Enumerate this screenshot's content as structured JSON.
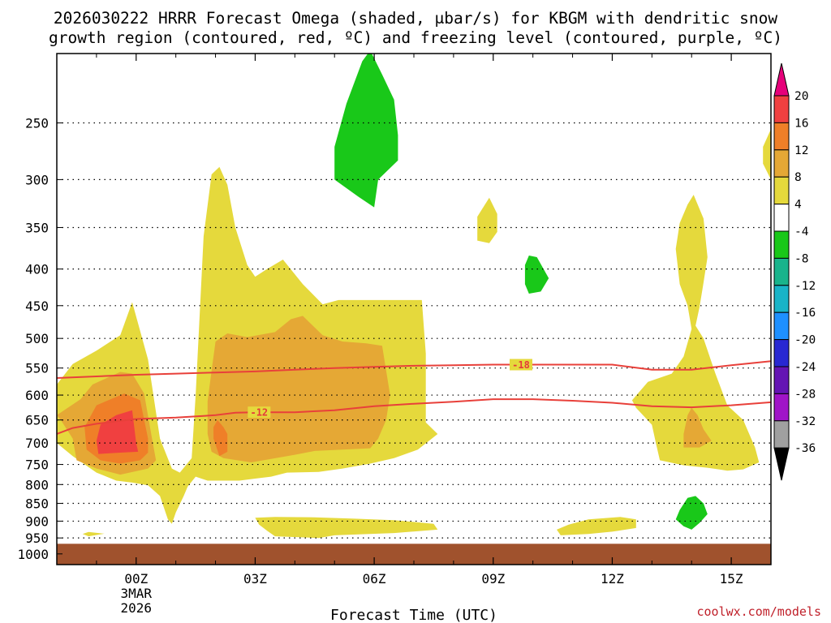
{
  "chart_data": {
    "type": "contour",
    "title_line1": "2026030222 HRRR Forecast Omega (shaded, μbar/s) for KBGM with dendritic snow",
    "title_line2": "growth region (contoured, red, ºC) and freezing level (contoured, purple, ºC)",
    "xlabel": "Forecast Time (UTC)",
    "x_hours": [
      -2,
      16
    ],
    "x_ticks": [
      {
        "hour": 0,
        "label": "00Z",
        "sub1": "3MAR",
        "sub2": "2026"
      },
      {
        "hour": 3,
        "label": "03Z",
        "sub1": "",
        "sub2": ""
      },
      {
        "hour": 6,
        "label": "06Z",
        "sub1": "",
        "sub2": ""
      },
      {
        "hour": 9,
        "label": "09Z",
        "sub1": "",
        "sub2": ""
      },
      {
        "hour": 12,
        "label": "12Z",
        "sub1": "",
        "sub2": ""
      },
      {
        "hour": 15,
        "label": "15Z",
        "sub1": "",
        "sub2": ""
      }
    ],
    "y_levels": [
      {
        "p": 250,
        "label": "250"
      },
      {
        "p": 300,
        "label": "300"
      },
      {
        "p": 350,
        "label": "350"
      },
      {
        "p": 400,
        "label": "400"
      },
      {
        "p": 450,
        "label": "450"
      },
      {
        "p": 500,
        "label": "500"
      },
      {
        "p": 550,
        "label": "550"
      },
      {
        "p": 600,
        "label": "600"
      },
      {
        "p": 650,
        "label": "650"
      },
      {
        "p": 700,
        "label": "700"
      },
      {
        "p": 750,
        "label": "750"
      },
      {
        "p": 800,
        "label": "800"
      },
      {
        "p": 850,
        "label": "850"
      },
      {
        "p": 900,
        "label": "900"
      },
      {
        "p": 950,
        "label": "950"
      },
      {
        "p": 1000,
        "label": "1000"
      }
    ],
    "y_range_mb": [
      200,
      1035
    ],
    "ground_level_mb": 968,
    "ground_color": "#a0522d",
    "colorbar": {
      "labels": [
        "20",
        "16",
        "12",
        "8",
        "4",
        "-4",
        "-8",
        "-12",
        "-16",
        "-20",
        "-24",
        "-28",
        "-32",
        "-36"
      ],
      "bins": [
        {
          "range": ">20",
          "color": "#e6007a"
        },
        {
          "range": "16-20",
          "color": "#f04040"
        },
        {
          "range": "12-16",
          "color": "#ef7f28"
        },
        {
          "range": "8-12",
          "color": "#e5a835"
        },
        {
          "range": "4-8",
          "color": "#e5d93c"
        },
        {
          "range": "-4-4",
          "color": "#ffffff"
        },
        {
          "range": "-8--4",
          "color": "#19c819"
        },
        {
          "range": "-12--8",
          "color": "#19b48c"
        },
        {
          "range": "-16--12",
          "color": "#19b4c8"
        },
        {
          "range": "-20--16",
          "color": "#1e90ff"
        },
        {
          "range": "-24--20",
          "color": "#2828d2"
        },
        {
          "range": "-28--24",
          "color": "#6414b4"
        },
        {
          "range": "-32--28",
          "color": "#a014c8"
        },
        {
          "range": "-36--32",
          "color": "#a0a0a0"
        },
        {
          "range": "<-36",
          "color": "#000000"
        }
      ]
    },
    "omega_regions": [
      {
        "level": "4-8",
        "points": [
          [
            -2,
            580
          ],
          [
            -1.6,
            543
          ],
          [
            -1,
            520
          ],
          [
            -0.4,
            495
          ],
          [
            -0.1,
            445
          ],
          [
            0.3,
            535
          ],
          [
            0.6,
            690
          ],
          [
            0.9,
            760
          ],
          [
            1.1,
            770
          ],
          [
            1.4,
            735
          ],
          [
            1.5,
            600
          ],
          [
            1.7,
            360
          ],
          [
            1.9,
            295
          ],
          [
            2.1,
            288
          ],
          [
            2.3,
            305
          ],
          [
            2.5,
            350
          ],
          [
            2.8,
            395
          ],
          [
            3.0,
            410
          ],
          [
            3.3,
            400
          ],
          [
            3.7,
            388
          ],
          [
            4.2,
            420
          ],
          [
            4.7,
            448
          ],
          [
            5.1,
            442
          ],
          [
            7.2,
            442
          ],
          [
            7.3,
            525
          ],
          [
            7.3,
            655
          ],
          [
            7.6,
            680
          ],
          [
            7.1,
            715
          ],
          [
            6.5,
            735
          ],
          [
            5.9,
            748
          ],
          [
            5.2,
            760
          ],
          [
            4.6,
            768
          ],
          [
            3.8,
            770
          ],
          [
            3.4,
            780
          ],
          [
            3.0,
            785
          ],
          [
            2.6,
            790
          ],
          [
            2.2,
            790
          ],
          [
            1.8,
            790
          ],
          [
            1.5,
            780
          ],
          [
            1.3,
            805
          ],
          [
            1.2,
            830
          ],
          [
            1.0,
            875
          ],
          [
            0.9,
            908
          ],
          [
            0.8,
            895
          ],
          [
            0.6,
            830
          ],
          [
            0.3,
            802
          ],
          [
            -0.1,
            795
          ],
          [
            -0.5,
            790
          ],
          [
            -1,
            770
          ],
          [
            -1.6,
            730
          ],
          [
            -2,
            700
          ]
        ]
      },
      {
        "level": "4-8",
        "points": [
          [
            -1.2,
            932
          ],
          [
            -0.8,
            937
          ],
          [
            -1.2,
            945
          ],
          [
            -1.35,
            938
          ]
        ]
      },
      {
        "level": "4-8",
        "points": [
          [
            3,
            890
          ],
          [
            3.5,
            888
          ],
          [
            4.5,
            889
          ],
          [
            5.5,
            893
          ],
          [
            6.5,
            897
          ],
          [
            7.5,
            908
          ],
          [
            7.6,
            925
          ],
          [
            6.5,
            935
          ],
          [
            5,
            942
          ],
          [
            4.6,
            950
          ],
          [
            3.5,
            945
          ],
          [
            3.3,
            928
          ],
          [
            3.1,
            910
          ]
        ]
      },
      {
        "level": "4-8",
        "points": [
          [
            11.4,
            895
          ],
          [
            12.2,
            888
          ],
          [
            12.6,
            895
          ],
          [
            12.6,
            920
          ],
          [
            12,
            931
          ],
          [
            11.4,
            938
          ],
          [
            10.7,
            942
          ],
          [
            10.6,
            925
          ],
          [
            10.9,
            910
          ]
        ]
      },
      {
        "level": "4-8",
        "points": [
          [
            8.6,
            338
          ],
          [
            8.9,
            318
          ],
          [
            9.1,
            335
          ],
          [
            9.1,
            355
          ],
          [
            8.9,
            368
          ],
          [
            8.6,
            365
          ]
        ]
      },
      {
        "level": "4-8",
        "points": [
          [
            13.7,
            345
          ],
          [
            13.9,
            325
          ],
          [
            14.05,
            315
          ],
          [
            14.3,
            340
          ],
          [
            14.4,
            385
          ],
          [
            14.3,
            418
          ],
          [
            14.2,
            452
          ],
          [
            14.1,
            480
          ],
          [
            14.3,
            500
          ],
          [
            14.6,
            560
          ],
          [
            14.9,
            620
          ],
          [
            15.3,
            650
          ],
          [
            15.6,
            710
          ],
          [
            15.7,
            745
          ],
          [
            15.3,
            762
          ],
          [
            14.9,
            765
          ],
          [
            14.4,
            758
          ],
          [
            13.8,
            752
          ],
          [
            13.2,
            740
          ],
          [
            13.1,
            700
          ],
          [
            13.0,
            660
          ],
          [
            12.6,
            625
          ],
          [
            12.5,
            610
          ],
          [
            12.9,
            575
          ],
          [
            13.5,
            560
          ],
          [
            13.8,
            530
          ],
          [
            14.0,
            485
          ],
          [
            13.9,
            450
          ],
          [
            13.7,
            420
          ],
          [
            13.6,
            375
          ]
        ]
      },
      {
        "level": "4-8",
        "points": [
          [
            15.8,
            270
          ],
          [
            16,
            255
          ],
          [
            16,
            300
          ],
          [
            15.8,
            285
          ]
        ]
      },
      {
        "level": "8-12",
        "points": [
          [
            -2,
            640
          ],
          [
            -1.4,
            608
          ],
          [
            -1.1,
            580
          ],
          [
            -0.4,
            557
          ],
          [
            -0.1,
            560
          ],
          [
            0.2,
            597
          ],
          [
            0.4,
            690
          ],
          [
            0.5,
            740
          ],
          [
            0.3,
            760
          ],
          [
            -0.4,
            775
          ],
          [
            -1,
            760
          ],
          [
            -1.5,
            740
          ],
          [
            -1.6,
            690
          ],
          [
            -1.9,
            650
          ]
        ]
      },
      {
        "level": "8-12",
        "points": [
          [
            1.8,
            612
          ],
          [
            1.9,
            555
          ],
          [
            2.0,
            505
          ],
          [
            2.3,
            492
          ],
          [
            2.8,
            498
          ],
          [
            3.5,
            490
          ],
          [
            3.9,
            470
          ],
          [
            4.2,
            465
          ],
          [
            4.7,
            495
          ],
          [
            5.2,
            505
          ],
          [
            5.8,
            508
          ],
          [
            6.2,
            512
          ],
          [
            6.4,
            600
          ],
          [
            6.3,
            650
          ],
          [
            6.1,
            690
          ],
          [
            5.9,
            712
          ],
          [
            4.5,
            718
          ],
          [
            4.0,
            727
          ],
          [
            2.9,
            745
          ],
          [
            2.2,
            735
          ],
          [
            1.9,
            720
          ],
          [
            1.8,
            680
          ]
        ]
      },
      {
        "level": "8-12",
        "points": [
          [
            13.9,
            640
          ],
          [
            14.0,
            625
          ],
          [
            14.15,
            640
          ],
          [
            14.3,
            670
          ],
          [
            14.5,
            695
          ],
          [
            14.2,
            710
          ],
          [
            13.8,
            710
          ],
          [
            13.8,
            680
          ]
        ]
      },
      {
        "level": "12-16",
        "points": [
          [
            -1.3,
            665
          ],
          [
            -1.0,
            620
          ],
          [
            -0.3,
            597
          ],
          [
            0.1,
            610
          ],
          [
            0.3,
            690
          ],
          [
            0.3,
            722
          ],
          [
            0.1,
            740
          ],
          [
            -0.4,
            748
          ],
          [
            -0.9,
            740
          ],
          [
            -1.25,
            715
          ]
        ]
      },
      {
        "level": "12-16",
        "points": [
          [
            1.95,
            690
          ],
          [
            1.95,
            665
          ],
          [
            2.05,
            650
          ],
          [
            2.2,
            665
          ],
          [
            2.3,
            680
          ],
          [
            2.3,
            720
          ],
          [
            2.1,
            730
          ]
        ]
      },
      {
        "level": "16-20",
        "points": [
          [
            -1.0,
            695
          ],
          [
            -0.9,
            660
          ],
          [
            -0.5,
            640
          ],
          [
            -0.1,
            630
          ],
          [
            0,
            700
          ],
          [
            0.05,
            720
          ],
          [
            -0.4,
            722
          ],
          [
            -0.95,
            725
          ]
        ]
      },
      {
        "level": "-8--4",
        "points": [
          [
            5.0,
            270
          ],
          [
            5.3,
            235
          ],
          [
            5.7,
            205
          ],
          [
            5.9,
            198
          ],
          [
            6.2,
            214
          ],
          [
            6.5,
            232
          ],
          [
            6.6,
            260
          ],
          [
            6.6,
            282
          ],
          [
            6.1,
            300
          ],
          [
            6.0,
            328
          ],
          [
            5.6,
            317
          ],
          [
            5.0,
            300
          ]
        ]
      },
      {
        "level": "-8--4",
        "points": [
          [
            9.8,
            395
          ],
          [
            9.9,
            383
          ],
          [
            10.1,
            385
          ],
          [
            10.4,
            412
          ],
          [
            10.2,
            430
          ],
          [
            9.9,
            433
          ],
          [
            9.8,
            420
          ]
        ]
      },
      {
        "level": "-8--4",
        "points": [
          [
            13.7,
            868
          ],
          [
            13.9,
            835
          ],
          [
            14.1,
            830
          ],
          [
            14.3,
            850
          ],
          [
            14.4,
            880
          ],
          [
            14.2,
            905
          ],
          [
            14.0,
            925
          ],
          [
            13.8,
            915
          ],
          [
            13.6,
            895
          ]
        ]
      }
    ],
    "isotherms": [
      {
        "label": "-18",
        "label_at_hour": 9.7,
        "points": [
          [
            -2,
            568
          ],
          [
            -1,
            565
          ],
          [
            0,
            562
          ],
          [
            1,
            560
          ],
          [
            2,
            558
          ],
          [
            3,
            556
          ],
          [
            4,
            553
          ],
          [
            5,
            550
          ],
          [
            6,
            548
          ],
          [
            7,
            546
          ],
          [
            8,
            545
          ],
          [
            9,
            544
          ],
          [
            10,
            544
          ],
          [
            11,
            544
          ],
          [
            12,
            544
          ],
          [
            13,
            553
          ],
          [
            14,
            553
          ],
          [
            15,
            545
          ],
          [
            16,
            538
          ]
        ]
      },
      {
        "label": "-12",
        "label_at_hour": 3.1,
        "points": [
          [
            -2,
            680
          ],
          [
            -1.6,
            667
          ],
          [
            -1,
            658
          ],
          [
            -0.4,
            652
          ],
          [
            0,
            648
          ],
          [
            1,
            645
          ],
          [
            2,
            640
          ],
          [
            2.5,
            635
          ],
          [
            3,
            634
          ],
          [
            4,
            634
          ],
          [
            5,
            630
          ],
          [
            6,
            622
          ],
          [
            7,
            617
          ],
          [
            8,
            613
          ],
          [
            9,
            608
          ],
          [
            10,
            608
          ],
          [
            11,
            611
          ],
          [
            12,
            615
          ],
          [
            13,
            622
          ],
          [
            14,
            624
          ],
          [
            15,
            620
          ],
          [
            16,
            614
          ]
        ]
      }
    ],
    "credit": "coolwx.com/models"
  }
}
